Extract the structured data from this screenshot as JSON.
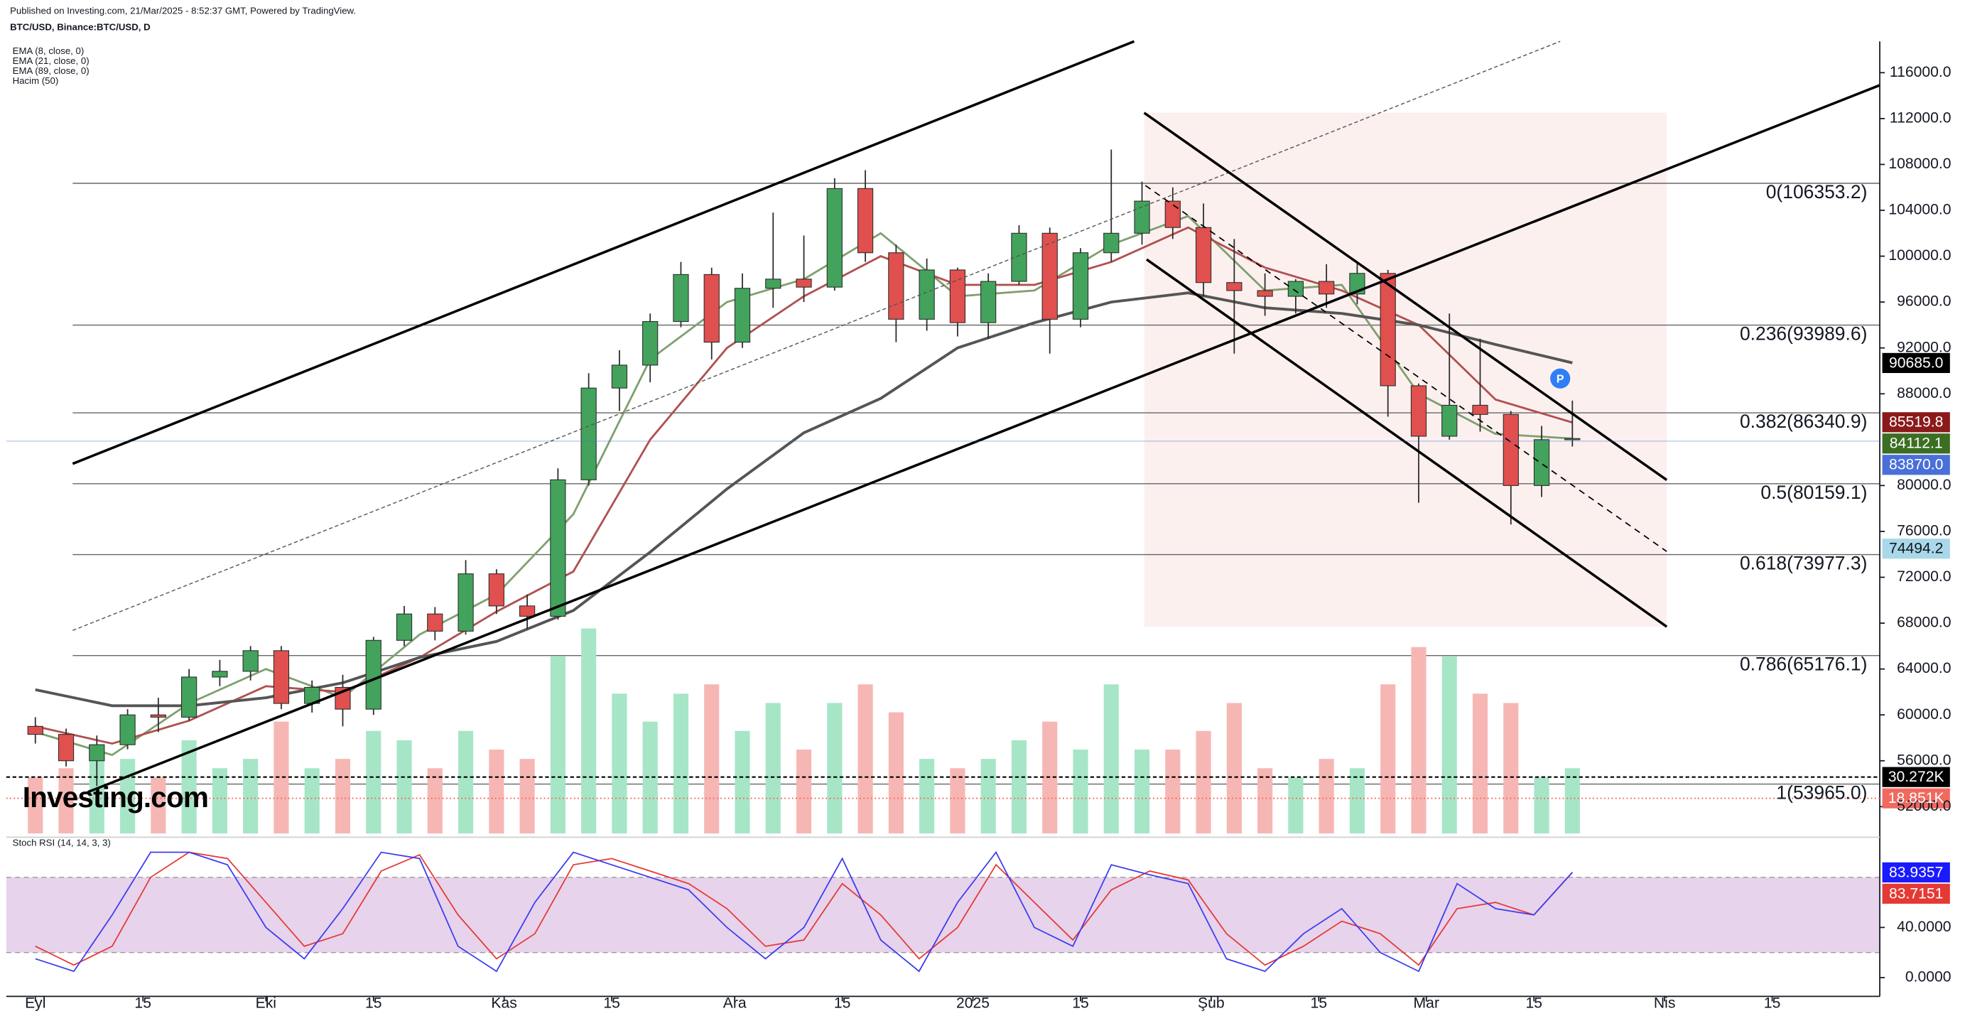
{
  "header": {
    "published": "Published on Investing.com, 21/Mar/2025 - 8:52:37 GMT, Powered by TradingView.",
    "symbol": "BTC/USD, Binance:BTC/USD, D",
    "logo": "Investing.com"
  },
  "chart_data": {
    "type": "candlestick",
    "xlim": [
      -4.6,
      240
    ],
    "xticks": [
      {
        "value": 0,
        "label": "Eyl"
      },
      {
        "value": 14,
        "label": "15"
      },
      {
        "value": 30,
        "label": "Eki"
      },
      {
        "value": 44,
        "label": "15"
      },
      {
        "value": 61,
        "label": "Kas"
      },
      {
        "value": 75,
        "label": "15"
      },
      {
        "value": 91,
        "label": "Ara"
      },
      {
        "value": 105,
        "label": "15"
      },
      {
        "value": 122,
        "label": "2025"
      },
      {
        "value": 136,
        "label": "15"
      },
      {
        "value": 153,
        "label": "Şub"
      },
      {
        "value": 167,
        "label": "15"
      },
      {
        "value": 181,
        "label": "Mar"
      },
      {
        "value": 195,
        "label": "15"
      },
      {
        "value": 212,
        "label": "Nis"
      },
      {
        "value": 226,
        "label": "15"
      }
    ],
    "ylim": [
      49661,
      118732
    ],
    "yticks": [
      {
        "value": 116000,
        "label": "116000.0"
      },
      {
        "value": 112000,
        "label": "112000.0"
      },
      {
        "value": 108000,
        "label": "108000.0"
      },
      {
        "value": 104000,
        "label": "104000.0"
      },
      {
        "value": 100000,
        "label": "100000.0"
      },
      {
        "value": 96000,
        "label": "96000.0"
      },
      {
        "value": 92000,
        "label": "92000.0"
      },
      {
        "value": 88000,
        "label": "88000.0"
      },
      {
        "value": 80000,
        "label": "80000.0"
      },
      {
        "value": 76000,
        "label": "76000.0"
      },
      {
        "value": 72000,
        "label": "72000.0"
      },
      {
        "value": 68000,
        "label": "68000.0"
      },
      {
        "value": 64000,
        "label": "64000.0"
      },
      {
        "value": 60000,
        "label": "60000.0"
      },
      {
        "value": 56000,
        "label": "56000.0"
      },
      {
        "value": 52000,
        "label": "52000.0"
      }
    ],
    "grid": false,
    "volume_ylim": [
      0,
      425000
    ],
    "volume_name": "Hacim (50)",
    "up_color": "#43a35c",
    "down_color": "#e0504e",
    "vol_up_color": "#a6e6c7",
    "vol_down_color": "#f6b7b4",
    "candles": {
      "x": [
        0,
        4,
        8,
        12,
        16,
        20,
        24,
        28,
        32,
        36,
        40,
        44,
        48,
        52,
        56,
        60,
        64,
        68,
        72,
        76,
        80,
        84,
        88,
        92,
        96,
        100,
        104,
        108,
        112,
        116,
        120,
        124,
        128,
        132,
        136,
        140,
        144,
        148,
        152,
        156,
        160,
        164,
        168,
        172,
        176,
        180,
        184,
        188,
        192,
        196,
        200
      ],
      "open": [
        59000,
        58300,
        56000,
        57400,
        60000,
        59800,
        63300,
        63800,
        65600,
        61000,
        62400,
        60500,
        66500,
        68800,
        67300,
        72300,
        69500,
        68600,
        80500,
        88500,
        90500,
        94300,
        98400,
        92500,
        97200,
        98000,
        97300,
        105900,
        100300,
        94500,
        98800,
        94200,
        97800,
        102000,
        94500,
        100300,
        102000,
        104800,
        102500,
        97700,
        97000,
        96500,
        97800,
        96700,
        98500,
        88700,
        84300,
        87000,
        86200,
        80000,
        84000
      ],
      "high": [
        59800,
        58800,
        58200,
        60500,
        61500,
        64000,
        64800,
        66000,
        66000,
        63000,
        63500,
        66800,
        69500,
        69400,
        73500,
        72700,
        70500,
        81500,
        89800,
        91800,
        95000,
        99500,
        99000,
        98500,
        103800,
        101800,
        106800,
        107500,
        101000,
        99800,
        99000,
        98500,
        102700,
        102500,
        100700,
        109300,
        106500,
        106000,
        104600,
        101500,
        98500,
        98000,
        99300,
        99400,
        98800,
        88900,
        95000,
        92800,
        86500,
        85200,
        87400
      ],
      "low": [
        57500,
        55500,
        53800,
        57000,
        58500,
        59500,
        62500,
        63000,
        60500,
        60200,
        59000,
        60000,
        66000,
        66500,
        67000,
        68800,
        67500,
        68300,
        80000,
        86500,
        89000,
        93800,
        91000,
        92000,
        95500,
        96000,
        97000,
        99500,
        92500,
        93500,
        93000,
        92800,
        97500,
        91500,
        93800,
        99500,
        101000,
        101500,
        96500,
        91500,
        94800,
        95000,
        95500,
        95800,
        86000,
        78500,
        84000,
        84700,
        76600,
        79000,
        83400
      ],
      "close": [
        58300,
        56000,
        57400,
        60000,
        59800,
        63300,
        63800,
        65600,
        61000,
        62400,
        60500,
        66500,
        68800,
        67300,
        72300,
        69500,
        68600,
        80500,
        88500,
        90500,
        94300,
        98400,
        92500,
        97200,
        98000,
        97300,
        105900,
        100300,
        94500,
        98800,
        94200,
        97800,
        102000,
        94500,
        100300,
        102000,
        104800,
        102500,
        97700,
        97000,
        96500,
        97800,
        96700,
        98500,
        88700,
        84300,
        87000,
        86200,
        80000,
        84000,
        84100
      ],
      "volume": [
        30000,
        35000,
        45000,
        40000,
        30000,
        50000,
        35000,
        40000,
        60000,
        35000,
        40000,
        55000,
        50000,
        35000,
        55000,
        45000,
        40000,
        95000,
        110000,
        75000,
        60000,
        75000,
        80000,
        55000,
        70000,
        45000,
        70000,
        80000,
        65000,
        40000,
        35000,
        40000,
        50000,
        60000,
        45000,
        80000,
        45000,
        45000,
        55000,
        70000,
        35000,
        30000,
        40000,
        35000,
        80000,
        100000,
        95000,
        75000,
        70000,
        30000,
        35000
      ]
    },
    "ema_x": [
      0,
      10,
      20,
      30,
      40,
      50,
      60,
      70,
      80,
      90,
      100,
      110,
      120,
      130,
      140,
      150,
      160,
      170,
      180,
      190,
      200
    ],
    "series": [
      {
        "name": "EMA (8, close, 0)",
        "color": "#7fa06f",
        "values": [
          58500,
          56500,
          61000,
          64000,
          61500,
          67000,
          70500,
          77500,
          91000,
          96000,
          98000,
          102000,
          96500,
          97000,
          101000,
          103500,
          97000,
          97500,
          88000,
          84500,
          84100
        ]
      },
      {
        "name": "EMA (21, close, 0)",
        "color": "#b05050",
        "values": [
          59000,
          57500,
          59500,
          62500,
          62000,
          65000,
          69000,
          72500,
          84000,
          92000,
          96500,
          100000,
          97500,
          97500,
          99500,
          102500,
          99000,
          97000,
          94000,
          87500,
          85500
        ]
      },
      {
        "name": "EMA (89, close, 0)",
        "color": "#555555",
        "values": [
          62200,
          60800,
          60800,
          61500,
          62800,
          65000,
          66400,
          69100,
          74200,
          79700,
          84600,
          87600,
          92000,
          94200,
          96000,
          96800,
          95500,
          95000,
          94000,
          92300,
          90700
        ]
      }
    ],
    "fib_levels": [
      {
        "value": 106353.2,
        "label": "0(106353.2)"
      },
      {
        "value": 93989.6,
        "label": "0.236(93989.6)"
      },
      {
        "value": 86340.9,
        "label": "0.382(86340.9)"
      },
      {
        "value": 80159.1,
        "label": "0.5(80159.1)"
      },
      {
        "value": 73977.3,
        "label": "0.618(73977.3)"
      },
      {
        "value": 65176.1,
        "label": "0.786(65176.1)"
      },
      {
        "value": 53965.0,
        "label": "1(53965.0)"
      }
    ],
    "price_tags": [
      {
        "value": 90685.0,
        "label": "90685.0",
        "color": "#000000",
        "text_color": "#ffffff"
      },
      {
        "value": 85519.8,
        "label": "85519.8",
        "color": "#8b1a1a",
        "text_color": "#ffffff"
      },
      {
        "value": 84112.1,
        "label": "84112.1",
        "color": "#3b6e22",
        "text_color": "#ffffff"
      },
      {
        "value": 83870.0,
        "label": "83870.0",
        "color": "#4a6fd8",
        "text_color": "#ffffff",
        "line": "solid"
      },
      {
        "value": 74494.2,
        "label": "74494.2",
        "color": "#a9d8e8",
        "text_color": "#131722"
      }
    ],
    "volume_tags": [
      {
        "value": 30272,
        "label": "30.272K",
        "color": "#000000",
        "text_color": "#ffffff",
        "line": "dashed"
      },
      {
        "value": 18851,
        "label": "18.851K",
        "color": "#f06a60",
        "text_color": "#ffffff",
        "line": "dotted"
      }
    ],
    "stoch": {
      "name": "Stoch RSI (14, 14, 3, 3)",
      "ylim": [
        -15,
        110
      ],
      "yticks": [
        {
          "value": 40,
          "label": "40.0000"
        },
        {
          "value": 0,
          "label": "0.0000"
        }
      ],
      "band": [
        20,
        80
      ],
      "band_color": "#e1c8e6",
      "x": [
        0,
        5,
        10,
        15,
        20,
        25,
        30,
        35,
        40,
        45,
        50,
        55,
        60,
        65,
        70,
        75,
        80,
        85,
        90,
        95,
        100,
        105,
        110,
        115,
        120,
        125,
        130,
        135,
        140,
        145,
        150,
        155,
        160,
        165,
        170,
        175,
        180,
        185,
        190,
        195,
        200
      ],
      "k_color": "#3c3cf0",
      "d_color": "#e53935",
      "k": [
        15,
        5,
        50,
        100,
        100,
        90,
        40,
        15,
        55,
        100,
        95,
        25,
        5,
        60,
        100,
        90,
        80,
        70,
        40,
        15,
        40,
        95,
        30,
        5,
        60,
        100,
        40,
        25,
        90,
        82,
        75,
        15,
        5,
        35,
        55,
        20,
        5,
        75,
        55,
        50,
        84
      ],
      "d": [
        25,
        10,
        25,
        80,
        100,
        95,
        60,
        25,
        35,
        85,
        98,
        50,
        15,
        35,
        90,
        95,
        85,
        75,
        55,
        25,
        30,
        75,
        50,
        15,
        40,
        90,
        60,
        30,
        70,
        85,
        78,
        35,
        10,
        25,
        45,
        35,
        10,
        55,
        60,
        50,
        84
      ],
      "tags": [
        {
          "value": 83.9357,
          "label": "83.9357",
          "color": "#1a1aff",
          "text_color": "#ffffff"
        },
        {
          "value": 83.7151,
          "label": "83.7151",
          "color": "#e53935",
          "text_color": "#ffffff"
        }
      ]
    }
  }
}
